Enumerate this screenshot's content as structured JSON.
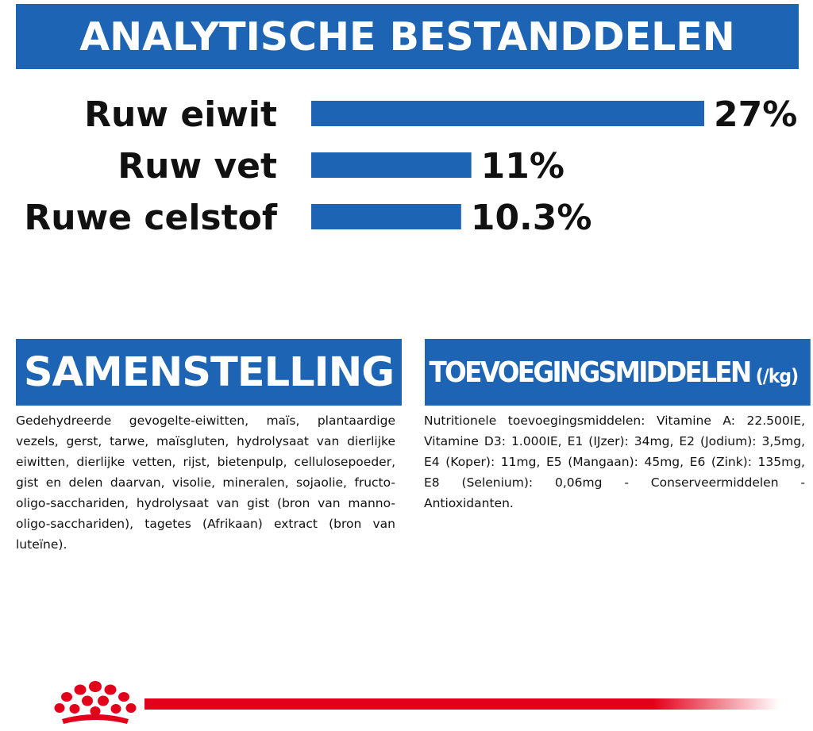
{
  "header": {
    "title": "ANALYTISCHE BESTANDDELEN"
  },
  "chart_data": {
    "type": "bar",
    "orientation": "horizontal",
    "categories": [
      "Ruw eiwit",
      "Ruw vet",
      "Ruwe celstof"
    ],
    "values": [
      27,
      11,
      10.3
    ],
    "value_labels": [
      "27%",
      "11%",
      "10.3%"
    ],
    "xlim": [
      0,
      27
    ],
    "bar_color": "#1e64b4"
  },
  "samenstelling": {
    "title": "SAMENSTELLING",
    "text": "Gedehydreerde gevogelte-eiwitten, maïs, plantaardige vezels, gerst, tarwe, maïsgluten, hydrolysaat van dierlijke eiwitten, dierlijke vetten, rijst, bietenpulp, cellulosepoeder, gist en delen daarvan, visolie, mineralen, sojaolie, fructo-oligo-sacchariden, hydrolysaat van gist (bron van manno-oligo-sacchariden), tagetes (Afrikaan) extract (bron van luteïne)."
  },
  "toevoegingsmiddelen": {
    "title": "TOEVOEGINGSMIDDELEN",
    "unit": "(/kg)",
    "text": "Nutritionele toevoegingsmiddelen: Vitamine A: 22.500IE, Vitamine D3: 1.000IE, E1 (IJzer): 34mg, E2 (Jodium): 3,5mg, E4 (Koper): 11mg, E5 (Mangaan): 45mg, E6 (Zink): 135mg, E8 (Selenium): 0,06mg - Conserveermiddelen - Antioxidanten."
  },
  "colors": {
    "brand_blue": "#1e64b4",
    "brand_red": "#e2001a"
  },
  "footer": {
    "logo": "royal-canin-crown-logo"
  }
}
